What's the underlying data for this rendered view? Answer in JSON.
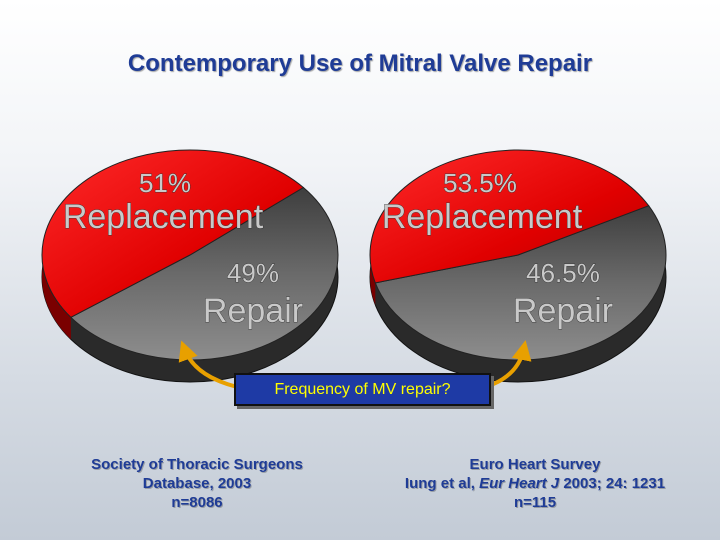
{
  "title": "Contemporary Use of Mitral Valve Repair",
  "chart_data": [
    {
      "type": "pie",
      "title": "",
      "slices": [
        {
          "label": "Replacement",
          "value": 51,
          "value_label": "51%",
          "color": "#6b6b6b"
        },
        {
          "label": "Repair",
          "value": 49,
          "value_label": "49%",
          "color": "#e00000"
        }
      ]
    },
    {
      "type": "pie",
      "title": "",
      "slices": [
        {
          "label": "Replacement",
          "value": 53.5,
          "value_label": "53.5%",
          "color": "#6b6b6b"
        },
        {
          "label": "Repair",
          "value": 46.5,
          "value_label": "46.5%",
          "color": "#e00000"
        }
      ]
    }
  ],
  "callout": "Frequency of MV repair?",
  "sources": {
    "left": {
      "line1": "Society of Thoracic Surgeons",
      "line2": "Database, 2003",
      "line3": "n=8086"
    },
    "right": {
      "line1": "Euro Heart Survey",
      "line2_prefix": "Iung et al, ",
      "journal": "Eur Heart J",
      "line2_suffix": " 2003; 24: 1231",
      "line3": "n=115"
    }
  },
  "colors": {
    "title": "#1f3c96",
    "replacement": "#6b6b6b",
    "repair": "#e00000",
    "callout_bg": "#1e3aa5",
    "callout_text": "#ffff00",
    "arrow": "#e8a000"
  }
}
